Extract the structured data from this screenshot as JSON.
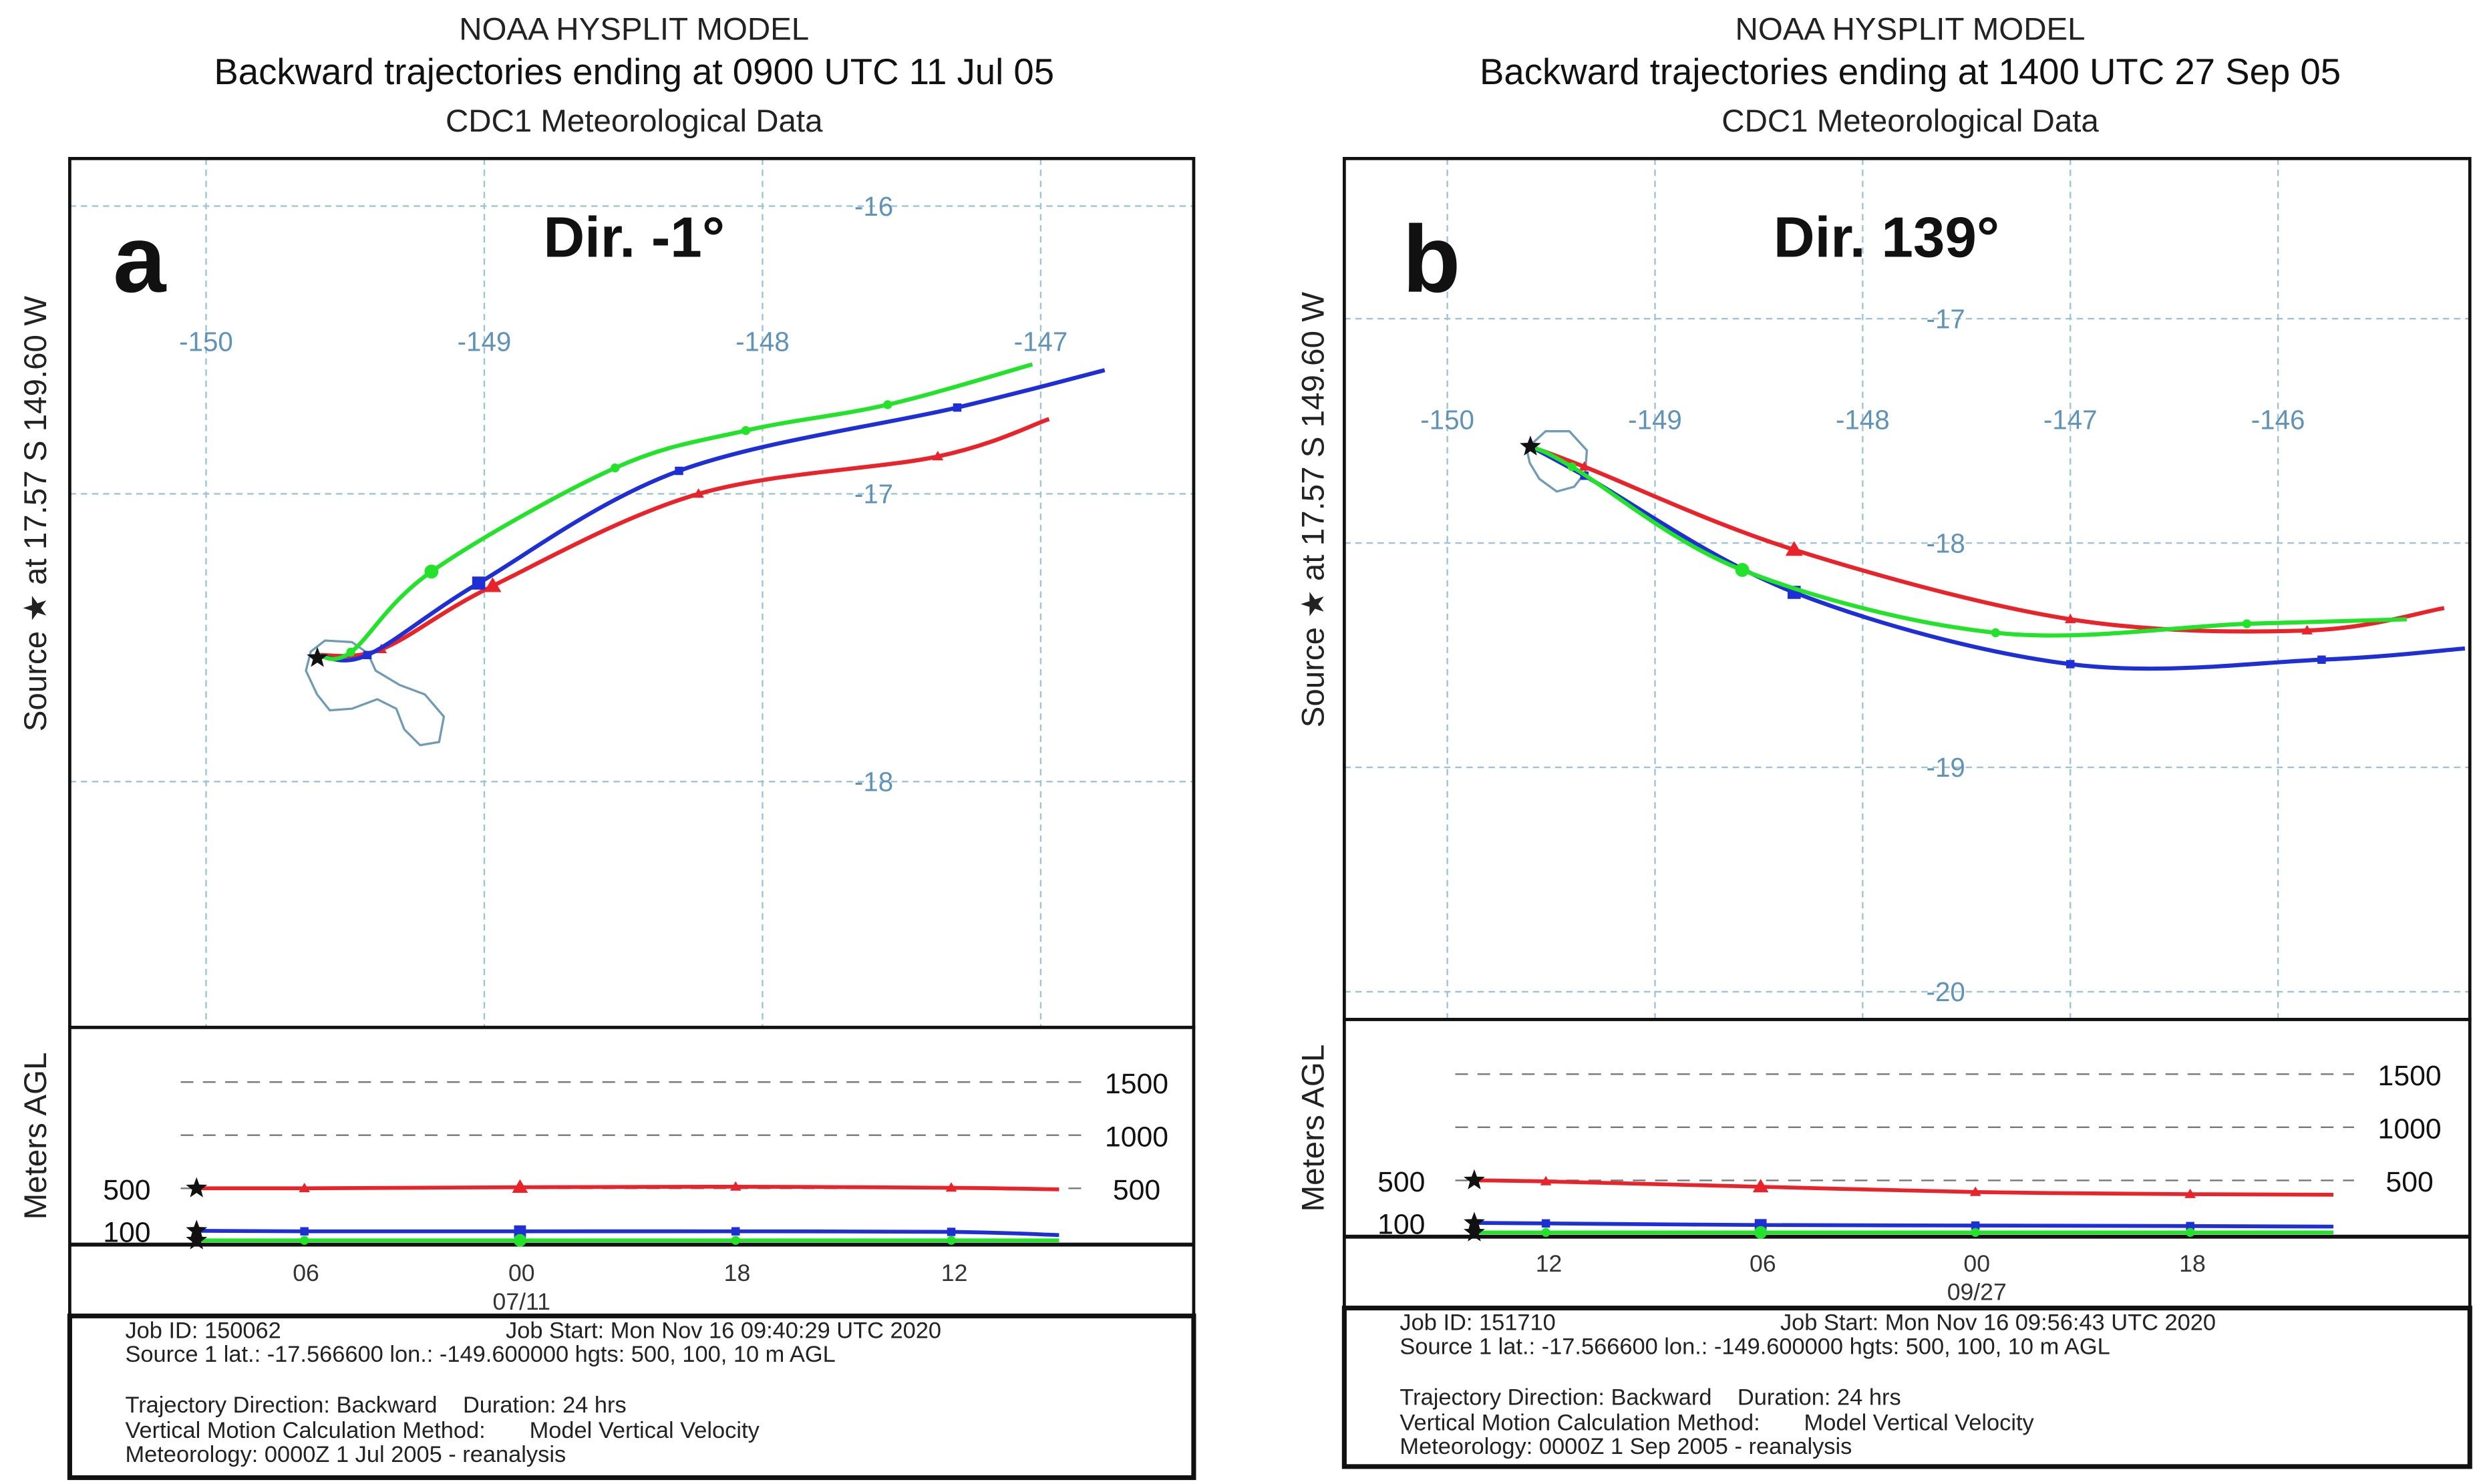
{
  "chart_data": [
    {
      "type": "line",
      "panel_letter": "a",
      "direction_label": "Dir. -1°",
      "title_lines": [
        "NOAA HYSPLIT MODEL",
        "Backward trajectories ending at 0900 UTC 11 Jul 05",
        "CDC1 Meteorological Data"
      ],
      "side_label": "Source ★  at  17.57 S  149.60 W",
      "lon_ticks": [
        "-150",
        "-149",
        "-148",
        "-147"
      ],
      "lat_ticks": [
        "-16",
        "-17",
        "-18"
      ],
      "source": {
        "lon": -149.6,
        "lat": -17.57
      },
      "map_series": [
        {
          "name": "500 m",
          "color": "#e8242a",
          "marker": "triangle",
          "points": [
            [
              -149.6,
              -17.56
            ],
            [
              -149.37,
              -17.54
            ],
            [
              -148.97,
              -17.32
            ],
            [
              -148.23,
              -17.0
            ],
            [
              -147.37,
              -16.87
            ],
            [
              -146.97,
              -16.74
            ]
          ]
        },
        {
          "name": "100 m",
          "color": "#1f2fd6",
          "marker": "square",
          "points": [
            [
              -149.6,
              -17.56
            ],
            [
              -149.42,
              -17.56
            ],
            [
              -149.02,
              -17.31
            ],
            [
              -148.3,
              -16.92
            ],
            [
              -147.3,
              -16.7
            ],
            [
              -146.77,
              -16.57
            ]
          ]
        },
        {
          "name": "10 m",
          "color": "#22e22a",
          "marker": "circle",
          "points": [
            [
              -149.6,
              -17.56
            ],
            [
              -149.48,
              -17.55
            ],
            [
              -149.19,
              -17.27
            ],
            [
              -148.53,
              -16.91
            ],
            [
              -148.06,
              -16.78
            ],
            [
              -147.55,
              -16.69
            ],
            [
              -147.03,
              -16.55
            ]
          ]
        }
      ],
      "height_axis": {
        "ylabel": "Meters AGL",
        "right_ticks": [
          "1500",
          "1000",
          "500"
        ],
        "left_ticks": [
          "500",
          "100"
        ]
      },
      "time_ticks": [
        "06",
        "00",
        "18",
        "12"
      ],
      "date_label": "07/11",
      "height_series": [
        {
          "name": "500 m",
          "color": "#e8242a",
          "marker": "triangle",
          "hours": [
            0,
            3,
            9,
            15,
            21,
            24
          ],
          "heights": [
            500,
            500,
            510,
            515,
            505,
            490
          ]
        },
        {
          "name": "100 m",
          "color": "#1f2fd6",
          "marker": "square",
          "hours": [
            0,
            3,
            9,
            15,
            21,
            24
          ],
          "heights": [
            100,
            95,
            95,
            95,
            90,
            60
          ]
        },
        {
          "name": "10 m",
          "color": "#22e22a",
          "marker": "circle",
          "hours": [
            0,
            3,
            9,
            15,
            21,
            24
          ],
          "heights": [
            10,
            10,
            10,
            10,
            10,
            10
          ]
        }
      ],
      "footer": [
        "Job ID: 150062",
        "Job Start: Mon Nov 16 09:40:29 UTC 2020",
        "Source 1 lat.: -17.566600  lon.: -149.600000  hgts: 500, 100, 10 m AGL",
        "Trajectory Direction: Backward",
        "Duration: 24 hrs",
        "Vertical Motion Calculation Method:",
        "Model Vertical Velocity",
        "Meteorology: 0000Z  1 Jul 2005 - reanalysis"
      ]
    },
    {
      "type": "line",
      "panel_letter": "b",
      "direction_label": "Dir. 139°",
      "title_lines": [
        "NOAA HYSPLIT MODEL",
        "Backward trajectories ending at 1400 UTC 27 Sep 05",
        "CDC1 Meteorological Data"
      ],
      "side_label": "Source ★  at  17.57 S  149.60 W",
      "lon_ticks": [
        "-150",
        "-149",
        "-148",
        "-147",
        "-146"
      ],
      "lat_ticks": [
        "-17",
        "-18",
        "-19",
        "-20"
      ],
      "source": {
        "lon": -149.6,
        "lat": -17.57
      },
      "map_series": [
        {
          "name": "500 m",
          "color": "#e8242a",
          "marker": "triangle",
          "points": [
            [
              -149.6,
              -17.57
            ],
            [
              -149.34,
              -17.66
            ],
            [
              -148.33,
              -18.03
            ],
            [
              -147.0,
              -18.34
            ],
            [
              -145.86,
              -18.39
            ],
            [
              -145.2,
              -18.29
            ]
          ]
        },
        {
          "name": "100 m",
          "color": "#1f2fd6",
          "marker": "square",
          "points": [
            [
              -149.6,
              -17.57
            ],
            [
              -149.34,
              -17.7
            ],
            [
              -148.33,
              -18.22
            ],
            [
              -147.0,
              -18.54
            ],
            [
              -145.79,
              -18.52
            ],
            [
              -145.1,
              -18.47
            ]
          ]
        },
        {
          "name": "10 m",
          "color": "#22e22a",
          "marker": "circle",
          "points": [
            [
              -149.6,
              -17.57
            ],
            [
              -149.4,
              -17.66
            ],
            [
              -148.58,
              -18.12
            ],
            [
              -147.36,
              -18.4
            ],
            [
              -146.15,
              -18.36
            ],
            [
              -145.38,
              -18.34
            ]
          ]
        }
      ],
      "height_axis": {
        "ylabel": "Meters AGL",
        "right_ticks": [
          "1500",
          "1000",
          "500"
        ],
        "left_ticks": [
          "500",
          "100"
        ]
      },
      "time_ticks": [
        "12",
        "06",
        "00",
        "18"
      ],
      "date_label": "09/27",
      "height_series": [
        {
          "name": "500 m",
          "color": "#e8242a",
          "marker": "triangle",
          "hours": [
            0,
            2,
            8,
            14,
            20,
            24
          ],
          "heights": [
            500,
            490,
            440,
            390,
            370,
            365
          ]
        },
        {
          "name": "100 m",
          "color": "#1f2fd6",
          "marker": "square",
          "hours": [
            0,
            2,
            8,
            14,
            20,
            24
          ],
          "heights": [
            100,
            95,
            80,
            75,
            70,
            65
          ]
        },
        {
          "name": "10 m",
          "color": "#22e22a",
          "marker": "circle",
          "hours": [
            0,
            2,
            8,
            14,
            20,
            24
          ],
          "heights": [
            10,
            10,
            10,
            10,
            10,
            10
          ]
        }
      ],
      "footer": [
        "Job ID: 151710",
        "Job Start: Mon Nov 16 09:56:43 UTC 2020",
        "Source 1 lat.: -17.566600  lon.: -149.600000  hgts: 500, 100, 10 m AGL",
        "Trajectory Direction: Backward",
        "Duration: 24 hrs",
        "Vertical Motion Calculation Method:",
        "Model Vertical Velocity",
        "Meteorology: 0000Z  1 Sep 2005 - reanalysis"
      ]
    }
  ]
}
